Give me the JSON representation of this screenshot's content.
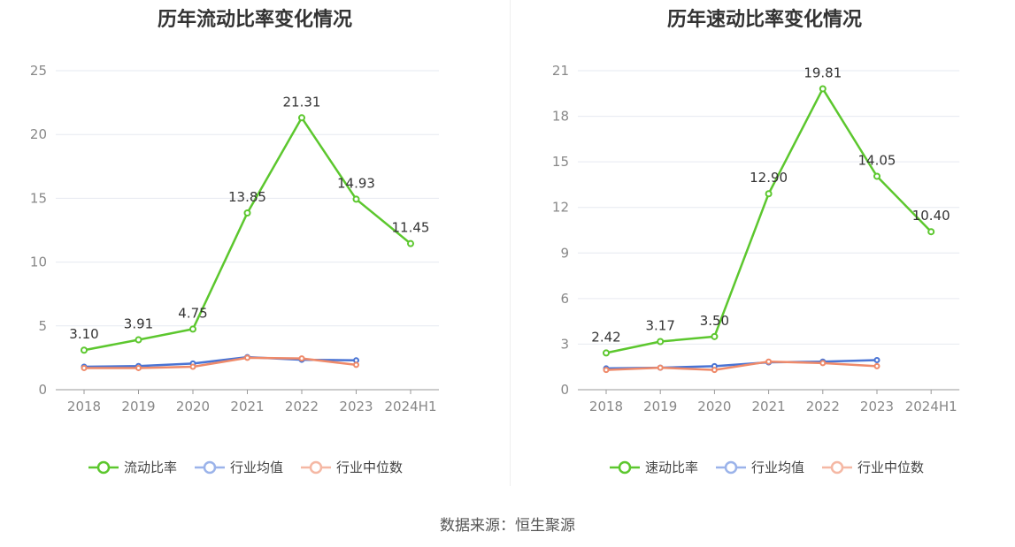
{
  "chart_data": [
    {
      "type": "line",
      "title": "历年流动比率变化情况",
      "categories": [
        "2018",
        "2019",
        "2020",
        "2021",
        "2022",
        "2023",
        "2024H1"
      ],
      "ylim": [
        0,
        25
      ],
      "yticks": [
        0,
        5,
        10,
        15,
        20,
        25
      ],
      "grid": true,
      "legend_position": "bottom",
      "series": [
        {
          "name": "流动比率",
          "color": "#5cc72e",
          "values": [
            3.1,
            3.91,
            4.75,
            13.85,
            21.31,
            14.93,
            11.45
          ],
          "labels": [
            "3.10",
            "3.91",
            "4.75",
            "13.85",
            "21.31",
            "14.93",
            "11.45"
          ]
        },
        {
          "name": "行业均值",
          "color": "#4a74d4",
          "values": [
            1.8,
            1.85,
            2.05,
            2.55,
            2.35,
            2.3,
            null
          ]
        },
        {
          "name": "行业中位数",
          "color": "#ef8a6a",
          "values": [
            1.7,
            1.7,
            1.8,
            2.5,
            2.45,
            1.95,
            null
          ]
        }
      ]
    },
    {
      "type": "line",
      "title": "历年速动比率变化情况",
      "categories": [
        "2018",
        "2019",
        "2020",
        "2021",
        "2022",
        "2023",
        "2024H1"
      ],
      "ylim": [
        0,
        21
      ],
      "yticks": [
        0,
        3,
        6,
        9,
        12,
        15,
        18,
        21
      ],
      "grid": true,
      "legend_position": "bottom",
      "series": [
        {
          "name": "速动比率",
          "color": "#5cc72e",
          "values": [
            2.42,
            3.17,
            3.5,
            12.9,
            19.81,
            14.05,
            10.4
          ],
          "labels": [
            "2.42",
            "3.17",
            "3.50",
            "12.90",
            "19.81",
            "14.05",
            "10.40"
          ]
        },
        {
          "name": "行业均值",
          "color": "#4a74d4",
          "values": [
            1.4,
            1.45,
            1.55,
            1.8,
            1.85,
            1.95,
            null
          ]
        },
        {
          "name": "行业中位数",
          "color": "#ef8a6a",
          "values": [
            1.3,
            1.45,
            1.3,
            1.85,
            1.75,
            1.55,
            null
          ]
        }
      ]
    }
  ],
  "source": "数据来源：恒生聚源"
}
